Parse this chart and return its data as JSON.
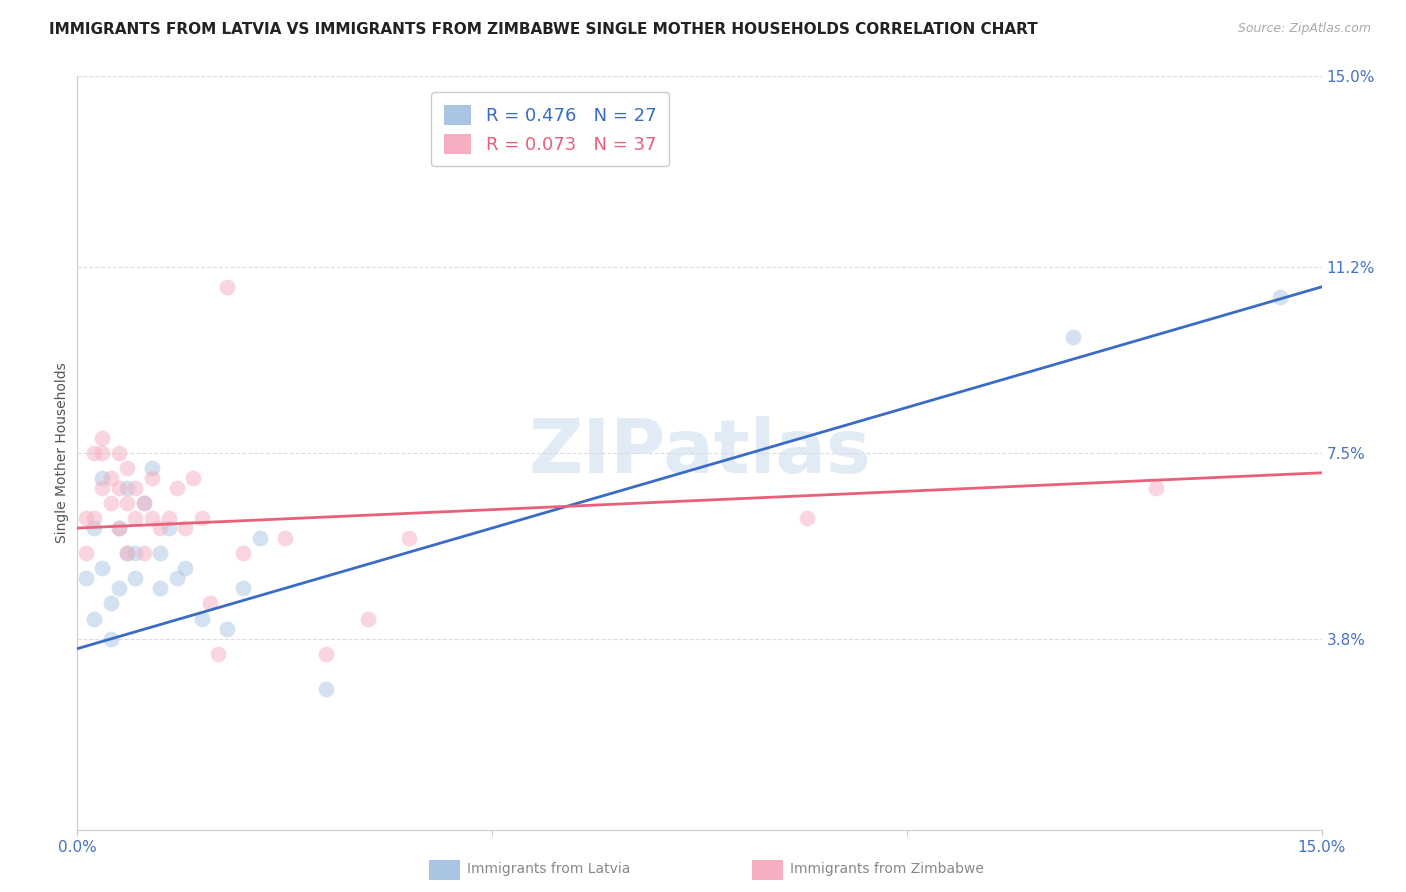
{
  "title": "IMMIGRANTS FROM LATVIA VS IMMIGRANTS FROM ZIMBABWE SINGLE MOTHER HOUSEHOLDS CORRELATION CHART",
  "source": "Source: ZipAtlas.com",
  "ylabel": "Single Mother Households",
  "xlim": [
    0.0,
    0.15
  ],
  "ylim": [
    0.0,
    0.15
  ],
  "ytick_right_labels": [
    "15.0%",
    "11.2%",
    "7.5%",
    "3.8%"
  ],
  "ytick_right_positions": [
    0.15,
    0.112,
    0.075,
    0.038
  ],
  "background_color": "#ffffff",
  "watermark_text": "ZIPatlas",
  "latvia_color": "#a8c4e2",
  "zimbabwe_color": "#f4afc0",
  "latvia_line_color": "#3a6cc4",
  "zimbabwe_line_color": "#e8607a",
  "latvia_R": 0.476,
  "latvia_N": 27,
  "zimbabwe_R": 0.073,
  "zimbabwe_N": 37,
  "latvia_points_x": [
    0.001,
    0.002,
    0.002,
    0.003,
    0.003,
    0.004,
    0.004,
    0.005,
    0.005,
    0.006,
    0.006,
    0.007,
    0.007,
    0.008,
    0.009,
    0.01,
    0.01,
    0.011,
    0.012,
    0.013,
    0.015,
    0.018,
    0.02,
    0.022,
    0.03,
    0.12,
    0.145
  ],
  "latvia_points_y": [
    0.05,
    0.06,
    0.042,
    0.07,
    0.052,
    0.045,
    0.038,
    0.06,
    0.048,
    0.068,
    0.055,
    0.055,
    0.05,
    0.065,
    0.072,
    0.055,
    0.048,
    0.06,
    0.05,
    0.052,
    0.042,
    0.04,
    0.048,
    0.058,
    0.028,
    0.098,
    0.106
  ],
  "zimbabwe_points_x": [
    0.001,
    0.001,
    0.002,
    0.002,
    0.003,
    0.003,
    0.003,
    0.004,
    0.004,
    0.005,
    0.005,
    0.005,
    0.006,
    0.006,
    0.006,
    0.007,
    0.007,
    0.008,
    0.008,
    0.009,
    0.009,
    0.01,
    0.011,
    0.012,
    0.013,
    0.014,
    0.015,
    0.016,
    0.017,
    0.018,
    0.02,
    0.025,
    0.03,
    0.035,
    0.04,
    0.088,
    0.13
  ],
  "zimbabwe_points_y": [
    0.062,
    0.055,
    0.075,
    0.062,
    0.075,
    0.068,
    0.078,
    0.065,
    0.07,
    0.075,
    0.068,
    0.06,
    0.065,
    0.072,
    0.055,
    0.068,
    0.062,
    0.065,
    0.055,
    0.07,
    0.062,
    0.06,
    0.062,
    0.068,
    0.06,
    0.07,
    0.062,
    0.045,
    0.035,
    0.108,
    0.055,
    0.058,
    0.035,
    0.042,
    0.058,
    0.062,
    0.068
  ],
  "grid_color": "#dddddd",
  "title_fontsize": 11,
  "axis_label_fontsize": 10,
  "tick_fontsize": 11,
  "legend_fontsize": 13,
  "marker_size": 130,
  "marker_alpha": 0.5,
  "line_width": 2.0,
  "latvia_line_x0": 0.0,
  "latvia_line_y0": 0.036,
  "latvia_line_x1": 0.15,
  "latvia_line_y1": 0.108,
  "zimbabwe_line_x0": 0.0,
  "zimbabwe_line_y0": 0.06,
  "zimbabwe_line_x1": 0.15,
  "zimbabwe_line_y1": 0.071
}
